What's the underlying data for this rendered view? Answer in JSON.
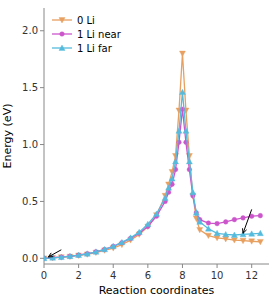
{
  "chart_data": {
    "type": "line",
    "xlabel": "Reaction coordinates",
    "ylabel": "Energy (eV)",
    "xlim": [
      0,
      13
    ],
    "ylim": [
      -0.05,
      2.2
    ],
    "xticks": [
      0,
      2,
      4,
      6,
      8,
      10,
      12
    ],
    "yticks": [
      {
        "value": 0.0,
        "label": "0.0"
      },
      0.5,
      {
        "value": 1.0,
        "label": "1.0"
      },
      1.5,
      {
        "value": 2.0,
        "label": "2.0"
      }
    ],
    "grid": false,
    "legend": "upper left",
    "x": [
      0,
      0.5,
      1,
      1.5,
      2,
      2.5,
      3,
      3.5,
      4,
      4.5,
      5,
      5.5,
      6,
      6.5,
      7,
      7.2,
      7.4,
      7.6,
      7.8,
      8.0,
      8.2,
      8.4,
      8.6,
      8.8,
      9,
      9.5,
      10,
      10.5,
      11,
      11.5,
      12,
      12.5
    ],
    "series": [
      {
        "name": "0 Li",
        "color": "#E8A060",
        "marker": "triangle-down",
        "values": [
          0,
          0.005,
          0.01,
          0.015,
          0.025,
          0.035,
          0.05,
          0.07,
          0.09,
          0.12,
          0.16,
          0.21,
          0.28,
          0.38,
          0.55,
          0.65,
          0.76,
          0.9,
          1.3,
          1.8,
          1.3,
          0.9,
          0.55,
          0.35,
          0.25,
          0.2,
          0.18,
          0.17,
          0.16,
          0.155,
          0.15,
          0.145
        ]
      },
      {
        "name": "1 Li near",
        "color": "#CC55CC",
        "marker": "circle",
        "values": [
          0,
          0.005,
          0.01,
          0.018,
          0.028,
          0.04,
          0.057,
          0.078,
          0.105,
          0.137,
          0.175,
          0.22,
          0.28,
          0.37,
          0.5,
          0.58,
          0.65,
          0.78,
          1.02,
          1.31,
          1.02,
          0.78,
          0.55,
          0.4,
          0.34,
          0.31,
          0.305,
          0.32,
          0.34,
          0.355,
          0.37,
          0.375
        ]
      },
      {
        "name": "1 Li far",
        "color": "#55BBDD",
        "marker": "triangle-up",
        "values": [
          0,
          0.005,
          0.01,
          0.018,
          0.028,
          0.04,
          0.057,
          0.078,
          0.105,
          0.14,
          0.18,
          0.23,
          0.3,
          0.39,
          0.53,
          0.62,
          0.7,
          0.85,
          1.12,
          1.46,
          1.12,
          0.85,
          0.58,
          0.4,
          0.32,
          0.26,
          0.22,
          0.21,
          0.205,
          0.21,
          0.215,
          0.22
        ]
      }
    ],
    "arrows": [
      {
        "xy": [
          0.25,
          0.012
        ],
        "xytext": [
          1.0,
          0.075
        ]
      },
      {
        "xy": [
          11.5,
          0.22
        ],
        "xytext": [
          12.0,
          0.43
        ]
      }
    ]
  }
}
